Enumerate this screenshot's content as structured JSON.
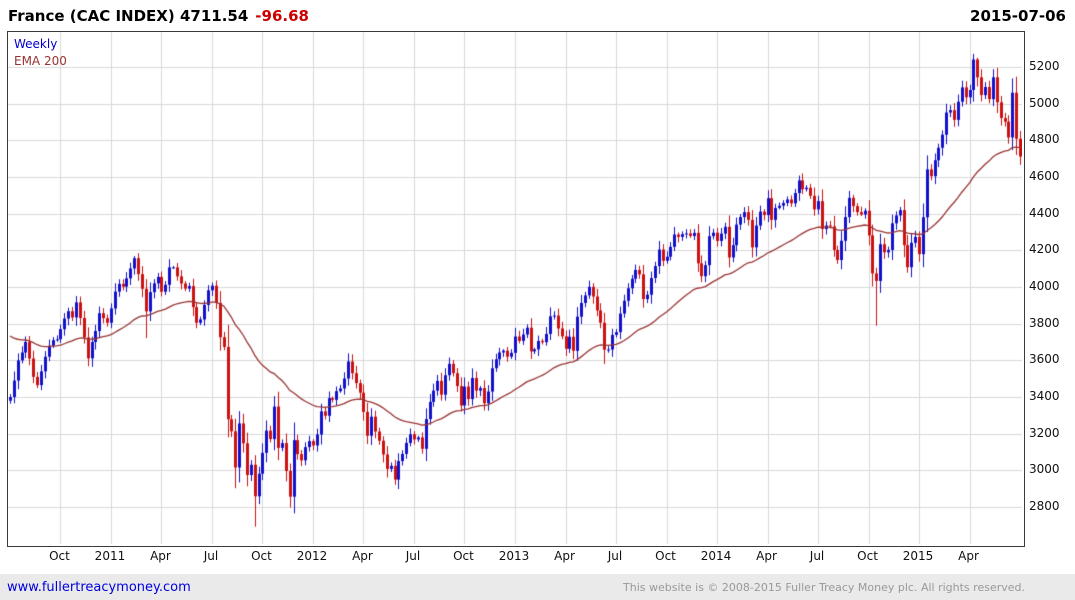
{
  "header": {
    "title": "France (CAC INDEX) 4711.54",
    "change": "-96.68",
    "date": "2015-07-06"
  },
  "legend": {
    "weekly": "Weekly",
    "ema": "EMA 200"
  },
  "footer": {
    "link": "www.fullertreacymoney.com",
    "copyright": "This website is © 2008-2015 Fuller Treacy Money plc. All rights reserved."
  },
  "colors": {
    "up": "#1111cc",
    "down": "#cc1111",
    "ema": "#993333",
    "grid": "#d9d9d9",
    "change_negative": "#cc0000",
    "legend_weekly": "#0000cc",
    "frame": "#3a3a3a"
  },
  "chart_data": {
    "type": "candlestick",
    "title": "France (CAC INDEX)",
    "frequency": "weekly",
    "last_close": 4711.54,
    "change": -96.68,
    "as_of": "2015-07-06",
    "xlabel": "",
    "ylabel": "",
    "ylim": [
      2599,
      5390
    ],
    "grid": true,
    "legend_position": "top-left",
    "y_ticks": [
      2800,
      3000,
      3200,
      3400,
      3600,
      3800,
      4000,
      4200,
      4400,
      4600,
      4800,
      5000,
      5200
    ],
    "x_ticks": [
      {
        "label": "Oct",
        "week": 13
      },
      {
        "label": "2011",
        "week": 26
      },
      {
        "label": "Apr",
        "week": 39
      },
      {
        "label": "Jul",
        "week": 52
      },
      {
        "label": "Oct",
        "week": 65
      },
      {
        "label": "2012",
        "week": 78
      },
      {
        "label": "Apr",
        "week": 91
      },
      {
        "label": "Jul",
        "week": 104
      },
      {
        "label": "Oct",
        "week": 117
      },
      {
        "label": "2013",
        "week": 130
      },
      {
        "label": "Apr",
        "week": 143
      },
      {
        "label": "Jul",
        "week": 156
      },
      {
        "label": "Oct",
        "week": 169
      },
      {
        "label": "2014",
        "week": 182
      },
      {
        "label": "Apr",
        "week": 195
      },
      {
        "label": "Jul",
        "week": 208
      },
      {
        "label": "Oct",
        "week": 221
      },
      {
        "label": "2015",
        "week": 234
      },
      {
        "label": "Apr",
        "week": 247
      }
    ],
    "weekly_closes": [
      3400,
      3490,
      3600,
      3643,
      3700,
      3610,
      3510,
      3465,
      3540,
      3620,
      3680,
      3710,
      3715,
      3770,
      3828,
      3868,
      3834,
      3916,
      3831,
      3725,
      3611,
      3700,
      3760,
      3857,
      3830,
      3805,
      3883,
      3975,
      4017,
      4002,
      4047,
      4101,
      4157,
      4070,
      3990,
      3867,
      3972,
      4020,
      4055,
      3974,
      4012,
      4107,
      4107,
      4058,
      4019,
      3991,
      4005,
      3890,
      3805,
      3823,
      3902,
      3982,
      4007,
      3913,
      3726,
      3673,
      3279,
      3213,
      3016,
      3256,
      3148,
      2975,
      3031,
      2859,
      2982,
      3096,
      3217,
      3171,
      3348,
      3123,
      3149,
      2997,
      2857,
      3165,
      3089,
      3055,
      3127,
      3160,
      3136,
      3196,
      3322,
      3298,
      3394,
      3385,
      3432,
      3447,
      3501,
      3594,
      3530,
      3476,
      3424,
      3319,
      3189,
      3293,
      3212,
      3162,
      3087,
      3008,
      3025,
      2950,
      3051,
      3090,
      3150,
      3197,
      3169,
      3180,
      3118,
      3280,
      3374,
      3435,
      3488,
      3413,
      3519,
      3581,
      3530,
      3460,
      3354,
      3457,
      3389,
      3504,
      3435,
      3449,
      3366,
      3430,
      3557,
      3606,
      3643,
      3653,
      3620,
      3641,
      3730,
      3706,
      3741,
      3778,
      3649,
      3660,
      3706,
      3699,
      3744,
      3840,
      3844,
      3774,
      3731,
      3663,
      3729,
      3652,
      3838,
      3913,
      3954,
      4001,
      3948,
      3872,
      3805,
      3658,
      3659,
      3739,
      3754,
      3855,
      3925,
      3993,
      4045,
      4093,
      4069,
      3934,
      3958,
      4049,
      4114,
      4204,
      4143,
      4165,
      4219,
      4286,
      4273,
      4288,
      4292,
      4278,
      4295,
      4129,
      4059,
      4119,
      4277,
      4296,
      4251,
      4291,
      4328,
      4161,
      4228,
      4340,
      4381,
      4408,
      4366,
      4216,
      4335,
      4411,
      4392,
      4484,
      4366,
      4431,
      4443,
      4458,
      4477,
      4456,
      4512,
      4581,
      4533,
      4541,
      4497,
      4423,
      4468,
      4316,
      4335,
      4330,
      4202,
      4147,
      4252,
      4381,
      4486,
      4441,
      4408,
      4395,
      4416,
      4281,
      4074,
      4033,
      4233,
      4189,
      4202,
      4347,
      4390,
      4419,
      4228,
      4108,
      4241,
      4273,
      4179,
      4380,
      4641,
      4604,
      4691,
      4759,
      4830,
      4951,
      4964,
      4911,
      5010,
      5088,
      5034,
      5074,
      5240,
      5143,
      5046,
      5090,
      5024,
      5143,
      5007,
      4921,
      4901,
      4815,
      5059,
      4808,
      4711.54
    ],
    "extremes": {
      "32": {
        "high": 4169
      },
      "35": {
        "low": 3721
      },
      "56": {
        "low": 3180
      },
      "58": {
        "low": 2903
      },
      "63": {
        "low": 2693
      },
      "153": {
        "low": 3580
      },
      "223": {
        "low": 3789
      },
      "231": {
        "low": 4078
      },
      "248": {
        "high": 5271
      },
      "249": {
        "high": 5250
      },
      "260": {
        "low": 4666
      }
    },
    "ema": {
      "label": "EMA 200",
      "weeks": 40,
      "seed": 3750
    }
  }
}
